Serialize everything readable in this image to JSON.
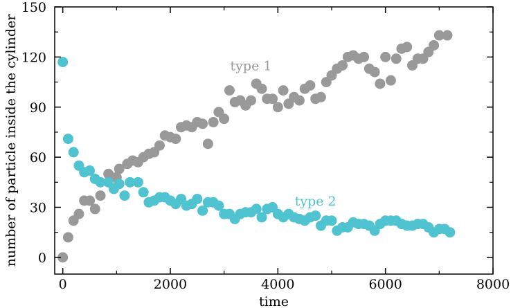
{
  "chart_data": {
    "type": "scatter",
    "xlabel": "time",
    "ylabel": "number of particle inside the cylinder",
    "xlim": [
      -150,
      8000
    ],
    "ylim": [
      -10,
      150
    ],
    "x_ticks": [
      0,
      2000,
      4000,
      6000,
      8000
    ],
    "y_ticks": [
      0,
      30,
      60,
      90,
      120,
      150
    ],
    "grid": false,
    "series": [
      {
        "name": "type 1",
        "color": "#999999",
        "label_position": [
          3500,
          112
        ],
        "points": [
          [
            0,
            0
          ],
          [
            100,
            12
          ],
          [
            200,
            22
          ],
          [
            300,
            26
          ],
          [
            400,
            34
          ],
          [
            500,
            34
          ],
          [
            600,
            29
          ],
          [
            700,
            37
          ],
          [
            850,
            50
          ],
          [
            1000,
            48
          ],
          [
            1050,
            53
          ],
          [
            1200,
            56
          ],
          [
            1300,
            58
          ],
          [
            1400,
            57
          ],
          [
            1500,
            60
          ],
          [
            1600,
            62
          ],
          [
            1700,
            63
          ],
          [
            1800,
            67
          ],
          [
            1900,
            73
          ],
          [
            2000,
            72
          ],
          [
            2100,
            71
          ],
          [
            2200,
            78
          ],
          [
            2300,
            79
          ],
          [
            2400,
            78
          ],
          [
            2500,
            81
          ],
          [
            2600,
            80
          ],
          [
            2700,
            68
          ],
          [
            2800,
            81
          ],
          [
            2900,
            87
          ],
          [
            3000,
            83
          ],
          [
            3100,
            100
          ],
          [
            3200,
            93
          ],
          [
            3300,
            94
          ],
          [
            3400,
            91
          ],
          [
            3500,
            94
          ],
          [
            3600,
            104
          ],
          [
            3700,
            101
          ],
          [
            3800,
            95
          ],
          [
            3900,
            95
          ],
          [
            4000,
            90
          ],
          [
            4100,
            100
          ],
          [
            4200,
            92
          ],
          [
            4300,
            96
          ],
          [
            4400,
            94
          ],
          [
            4500,
            101
          ],
          [
            4600,
            103
          ],
          [
            4700,
            95
          ],
          [
            4800,
            96
          ],
          [
            4900,
            105
          ],
          [
            5000,
            109
          ],
          [
            5100,
            113
          ],
          [
            5200,
            115
          ],
          [
            5300,
            120
          ],
          [
            5400,
            121
          ],
          [
            5500,
            119
          ],
          [
            5600,
            120
          ],
          [
            5700,
            113
          ],
          [
            5800,
            111
          ],
          [
            5900,
            104
          ],
          [
            6000,
            120
          ],
          [
            6100,
            106
          ],
          [
            6200,
            119
          ],
          [
            6300,
            125
          ],
          [
            6400,
            126
          ],
          [
            6500,
            115
          ],
          [
            6600,
            119
          ],
          [
            6700,
            119
          ],
          [
            6800,
            123
          ],
          [
            6900,
            127
          ],
          [
            7000,
            133
          ],
          [
            7150,
            133
          ]
        ]
      },
      {
        "name": "type 2",
        "color": "#4fc3cf",
        "label_position": [
          4700,
          31
        ],
        "points": [
          [
            0,
            117
          ],
          [
            100,
            71
          ],
          [
            200,
            63
          ],
          [
            300,
            55
          ],
          [
            400,
            51
          ],
          [
            500,
            52
          ],
          [
            600,
            47
          ],
          [
            700,
            45
          ],
          [
            850,
            45
          ],
          [
            950,
            41
          ],
          [
            1050,
            44
          ],
          [
            1150,
            37
          ],
          [
            1250,
            45
          ],
          [
            1400,
            45
          ],
          [
            1500,
            39
          ],
          [
            1600,
            33
          ],
          [
            1700,
            34
          ],
          [
            1800,
            36
          ],
          [
            1900,
            36
          ],
          [
            2000,
            34
          ],
          [
            2100,
            32
          ],
          [
            2200,
            35
          ],
          [
            2300,
            31
          ],
          [
            2400,
            32
          ],
          [
            2500,
            35
          ],
          [
            2600,
            28
          ],
          [
            2700,
            33
          ],
          [
            2800,
            33
          ],
          [
            2900,
            31
          ],
          [
            3000,
            26
          ],
          [
            3100,
            26
          ],
          [
            3200,
            23
          ],
          [
            3300,
            26
          ],
          [
            3400,
            27
          ],
          [
            3500,
            27
          ],
          [
            3600,
            29
          ],
          [
            3700,
            24
          ],
          [
            3800,
            29
          ],
          [
            3900,
            30
          ],
          [
            4000,
            26
          ],
          [
            4100,
            24
          ],
          [
            4200,
            26
          ],
          [
            4300,
            24
          ],
          [
            4400,
            23
          ],
          [
            4500,
            22
          ],
          [
            4600,
            24
          ],
          [
            4700,
            25
          ],
          [
            4800,
            19
          ],
          [
            4900,
            22
          ],
          [
            5000,
            22
          ],
          [
            5100,
            16
          ],
          [
            5200,
            18
          ],
          [
            5300,
            18
          ],
          [
            5400,
            21
          ],
          [
            5500,
            20
          ],
          [
            5600,
            20
          ],
          [
            5700,
            19
          ],
          [
            5800,
            16
          ],
          [
            5900,
            20
          ],
          [
            6000,
            22
          ],
          [
            6100,
            22
          ],
          [
            6200,
            22
          ],
          [
            6300,
            20
          ],
          [
            6400,
            19
          ],
          [
            6500,
            19
          ],
          [
            6600,
            20
          ],
          [
            6700,
            20
          ],
          [
            6800,
            18
          ],
          [
            6900,
            15
          ],
          [
            7000,
            17
          ],
          [
            7100,
            17
          ],
          [
            7200,
            15
          ]
        ]
      }
    ]
  }
}
